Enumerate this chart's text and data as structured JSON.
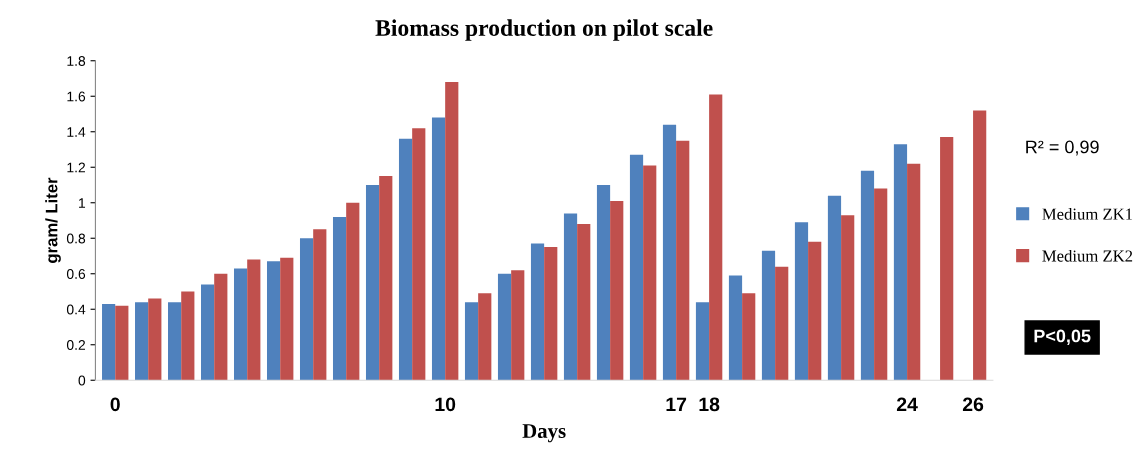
{
  "chart_data": {
    "type": "bar",
    "title": "Biomass production on pilot scale",
    "xlabel": "Days",
    "ylabel": "gram/ Liter",
    "categories": [
      "0",
      null,
      null,
      null,
      null,
      null,
      null,
      null,
      null,
      null,
      "10",
      null,
      null,
      null,
      null,
      null,
      null,
      "17",
      "18",
      null,
      null,
      null,
      null,
      null,
      "24",
      null,
      "26"
    ],
    "series": [
      {
        "name": "Medium ZK1",
        "color": "#4f81bd",
        "values": [
          0.43,
          0.44,
          0.44,
          0.54,
          0.63,
          0.67,
          0.8,
          0.92,
          1.1,
          1.36,
          1.48,
          0.44,
          0.6,
          0.77,
          0.94,
          1.1,
          1.27,
          1.44,
          0.44,
          0.59,
          0.73,
          0.89,
          1.04,
          1.18,
          1.33,
          null,
          null
        ]
      },
      {
        "name": "Medium ZK2",
        "color": "#c0504d",
        "values": [
          0.42,
          0.46,
          0.5,
          0.6,
          0.68,
          0.69,
          0.85,
          1.0,
          1.15,
          1.42,
          1.68,
          0.49,
          0.62,
          0.75,
          0.88,
          1.01,
          1.21,
          1.35,
          1.61,
          0.49,
          0.64,
          0.78,
          0.93,
          1.08,
          1.22,
          1.37,
          1.52
        ]
      }
    ],
    "ylim": [
      0,
      1.8
    ],
    "yticks": [
      0,
      0.2,
      0.4,
      0.6,
      0.8,
      1,
      1.2,
      1.4,
      1.6,
      1.8
    ],
    "grid": false,
    "legend": "right",
    "annotations": [
      "R² = 0,99",
      "P<0,05"
    ]
  }
}
